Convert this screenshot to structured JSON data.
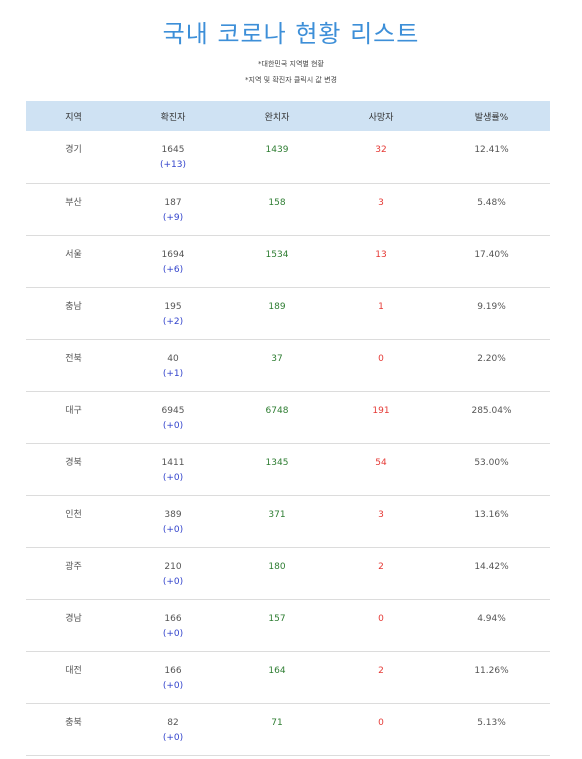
{
  "title": "국내 코로나 현황 리스트",
  "notes": [
    "*대한민국 지역별 현황",
    "*지역 및 확진자 클릭시 값 변경"
  ],
  "table": {
    "headers": [
      "지역",
      "확진자",
      "완치자",
      "사망자",
      "발생률%"
    ],
    "rows": [
      {
        "region": "경기",
        "confirmed": "1645",
        "delta": "(+13)",
        "recovered": "1439",
        "deaths": "32",
        "rate": "12.41%"
      },
      {
        "region": "부산",
        "confirmed": "187",
        "delta": "(+9)",
        "recovered": "158",
        "deaths": "3",
        "rate": "5.48%"
      },
      {
        "region": "서울",
        "confirmed": "1694",
        "delta": "(+6)",
        "recovered": "1534",
        "deaths": "13",
        "rate": "17.40%"
      },
      {
        "region": "충남",
        "confirmed": "195",
        "delta": "(+2)",
        "recovered": "189",
        "deaths": "1",
        "rate": "9.19%"
      },
      {
        "region": "전북",
        "confirmed": "40",
        "delta": "(+1)",
        "recovered": "37",
        "deaths": "0",
        "rate": "2.20%"
      },
      {
        "region": "대구",
        "confirmed": "6945",
        "delta": "(+0)",
        "recovered": "6748",
        "deaths": "191",
        "rate": "285.04%"
      },
      {
        "region": "경북",
        "confirmed": "1411",
        "delta": "(+0)",
        "recovered": "1345",
        "deaths": "54",
        "rate": "53.00%"
      },
      {
        "region": "인천",
        "confirmed": "389",
        "delta": "(+0)",
        "recovered": "371",
        "deaths": "3",
        "rate": "13.16%"
      },
      {
        "region": "광주",
        "confirmed": "210",
        "delta": "(+0)",
        "recovered": "180",
        "deaths": "2",
        "rate": "14.42%"
      },
      {
        "region": "경남",
        "confirmed": "166",
        "delta": "(+0)",
        "recovered": "157",
        "deaths": "0",
        "rate": "4.94%"
      },
      {
        "region": "대전",
        "confirmed": "166",
        "delta": "(+0)",
        "recovered": "164",
        "deaths": "2",
        "rate": "11.26%"
      },
      {
        "region": "충북",
        "confirmed": "82",
        "delta": "(+0)",
        "recovered": "71",
        "deaths": "0",
        "rate": "5.13%"
      }
    ]
  }
}
